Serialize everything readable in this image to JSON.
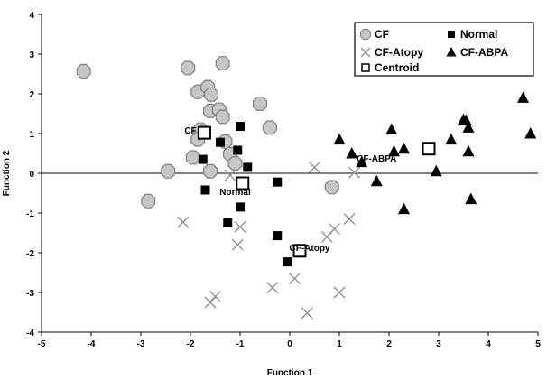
{
  "chart_data": {
    "type": "scatter",
    "xlabel": "Function 1",
    "ylabel": "Function 2",
    "xlim": [
      -5,
      5
    ],
    "ylim": [
      -4,
      4
    ],
    "xticks": [
      "-5",
      "-4",
      "-3",
      "-2",
      "-1",
      "0",
      "1",
      "2",
      "3",
      "4",
      "5"
    ],
    "yticks": [
      "4",
      "3",
      "2",
      "1",
      "0",
      "-1",
      "-2",
      "-3",
      "-4"
    ],
    "grid": false,
    "legend_position": "top-right",
    "legend": [
      {
        "label": "CF",
        "marker": "octagon"
      },
      {
        "label": "Normal",
        "marker": "square"
      },
      {
        "label": "CF-Atopy",
        "marker": "cross"
      },
      {
        "label": "CF-ABPA",
        "marker": "triangle"
      },
      {
        "label": "Centroid",
        "marker": "hollow-square"
      }
    ],
    "colors": {
      "cf_fill": "#c6c6c6",
      "cf_stroke": "#7f7f7f",
      "cross": "#8c8c8c",
      "black": "#000000"
    },
    "series": [
      {
        "name": "CF",
        "marker": "octagon",
        "points": [
          [
            -4.15,
            2.57
          ],
          [
            -2.05,
            2.65
          ],
          [
            -1.35,
            2.77
          ],
          [
            -1.85,
            2.05
          ],
          [
            -1.65,
            2.17
          ],
          [
            -1.58,
            1.98
          ],
          [
            -1.6,
            1.57
          ],
          [
            -1.42,
            1.6
          ],
          [
            -1.35,
            1.42
          ],
          [
            -0.6,
            1.75
          ],
          [
            -0.4,
            1.15
          ],
          [
            -1.8,
            1.1
          ],
          [
            -1.85,
            0.85
          ],
          [
            -1.3,
            0.8
          ],
          [
            -1.2,
            0.48
          ],
          [
            -1.1,
            0.25
          ],
          [
            -1.95,
            0.4
          ],
          [
            -1.6,
            0.05
          ],
          [
            -2.45,
            0.05
          ],
          [
            -2.85,
            -0.7
          ],
          [
            0.85,
            -0.35
          ]
        ]
      },
      {
        "name": "Normal",
        "marker": "square",
        "points": [
          [
            -1.75,
            0.35
          ],
          [
            -1.7,
            -0.42
          ],
          [
            -1.4,
            0.78
          ],
          [
            -1.0,
            1.18
          ],
          [
            -1.05,
            0.58
          ],
          [
            -0.85,
            0.15
          ],
          [
            -1.0,
            -0.85
          ],
          [
            -1.25,
            -1.25
          ],
          [
            -0.25,
            -0.22
          ],
          [
            -0.25,
            -1.57
          ],
          [
            -0.05,
            -2.23
          ]
        ]
      },
      {
        "name": "CF-Atopy",
        "marker": "cross",
        "points": [
          [
            -2.15,
            -1.23
          ],
          [
            -1.2,
            -0.05
          ],
          [
            -1.0,
            -1.35
          ],
          [
            -1.05,
            -1.8
          ],
          [
            -1.6,
            -3.25
          ],
          [
            -1.5,
            -3.1
          ],
          [
            -0.35,
            -2.88
          ],
          [
            0.1,
            -2.65
          ],
          [
            0.35,
            -3.52
          ],
          [
            0.5,
            0.15
          ],
          [
            0.75,
            -1.6
          ],
          [
            1.2,
            -1.15
          ],
          [
            1.3,
            0.02
          ],
          [
            1.0,
            -3.0
          ],
          [
            0.9,
            -1.4
          ]
        ]
      },
      {
        "name": "CF-ABPA",
        "marker": "triangle",
        "points": [
          [
            1.0,
            0.85
          ],
          [
            1.25,
            0.5
          ],
          [
            1.45,
            0.28
          ],
          [
            1.75,
            -0.2
          ],
          [
            2.05,
            1.1
          ],
          [
            2.1,
            0.55
          ],
          [
            2.3,
            0.62
          ],
          [
            2.3,
            -0.9
          ],
          [
            2.95,
            0.05
          ],
          [
            3.25,
            0.85
          ],
          [
            3.5,
            1.35
          ],
          [
            3.55,
            1.33
          ],
          [
            3.6,
            1.15
          ],
          [
            3.6,
            0.55
          ],
          [
            3.65,
            -0.65
          ],
          [
            4.7,
            1.9
          ],
          [
            4.85,
            1.0
          ]
        ]
      },
      {
        "name": "Centroid",
        "marker": "hollow-square",
        "points": [
          [
            -1.72,
            1.02
          ],
          [
            -0.95,
            -0.25
          ],
          [
            0.2,
            -1.95
          ],
          [
            2.8,
            0.62
          ]
        ]
      }
    ],
    "centroid_labels": [
      {
        "text": "CF",
        "x": -2.0,
        "y": 1.0
      },
      {
        "text": "Normal",
        "x": -1.1,
        "y": -0.55
      },
      {
        "text": "CF-Atopy",
        "x": 0.4,
        "y": -1.95
      },
      {
        "text": "CF-ABPA",
        "x": 1.75,
        "y": 0.3
      }
    ]
  }
}
